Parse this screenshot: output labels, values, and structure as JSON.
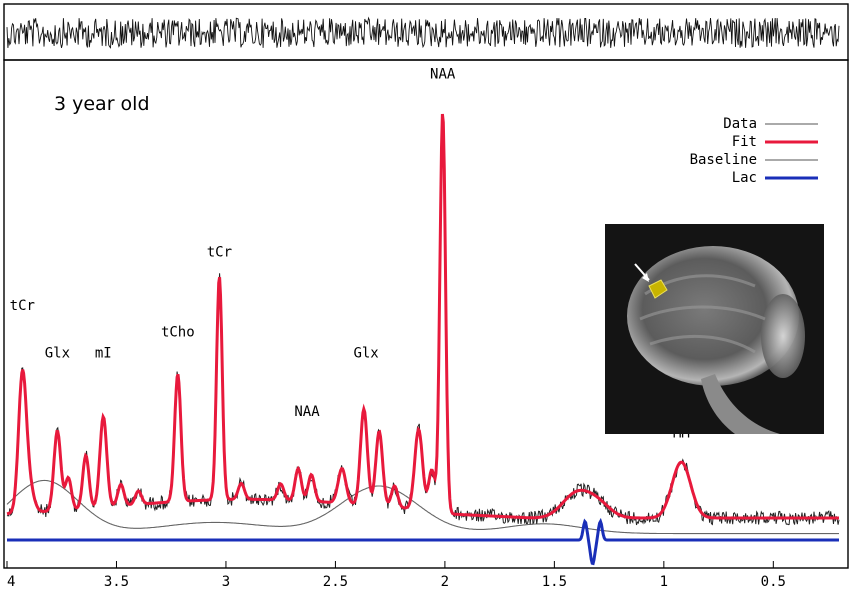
{
  "chart_data": {
    "type": "line",
    "title": "3 year old",
    "xlabel": "",
    "ylabel": "",
    "x_reversed": true,
    "xlim": [
      4.0,
      0.2
    ],
    "xticks": [
      "4",
      "3.5",
      "3",
      "2.5",
      "2",
      "1.5",
      "1",
      "0.5"
    ],
    "xtick_values": [
      4.0,
      3.5,
      3.0,
      2.5,
      2.0,
      1.5,
      1.0,
      0.5
    ],
    "grid": false,
    "legend_position": "top-right",
    "legend": [
      {
        "name": "Data",
        "color": "#555555"
      },
      {
        "name": "Fit",
        "color": "#e8193c"
      },
      {
        "name": "Baseline",
        "color": "#555555"
      },
      {
        "name": "Lac",
        "color": "#1a2fb8"
      }
    ],
    "peaks": [
      {
        "label": "tCr",
        "ppm": 3.93,
        "height": 0.73
      },
      {
        "label": "Glx",
        "ppm": 3.77,
        "height": 0.55
      },
      {
        "label": "mI",
        "ppm": 3.56,
        "height": 0.55
      },
      {
        "label": "tCho",
        "ppm": 3.22,
        "height": 0.63
      },
      {
        "label": "tCr",
        "ppm": 3.03,
        "height": 0.93
      },
      {
        "label": "NAA",
        "ppm": 2.63,
        "height": 0.33
      },
      {
        "label": "Glx",
        "ppm": 2.36,
        "height": 0.55
      },
      {
        "label": "NAA",
        "ppm": 2.01,
        "height": 1.6
      },
      {
        "label": "MM",
        "ppm": 0.92,
        "height": 0.25
      }
    ],
    "inset_image": "sagittal head MRI with yellow voxel marker and white arrow"
  },
  "colors": {
    "fit": "#e8193c",
    "data": "#222222",
    "baseline": "#666666",
    "lac": "#1a2fb8",
    "residual": "#111111",
    "voxel": "#c8b400"
  }
}
